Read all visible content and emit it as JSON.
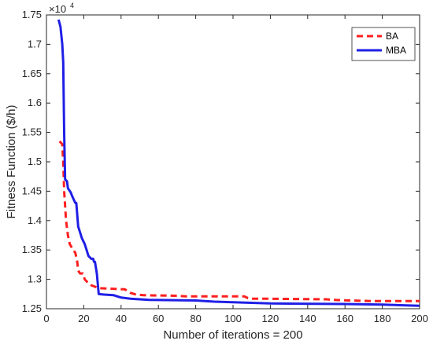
{
  "chart_data": {
    "type": "line",
    "xlabel": "Number of iterations = 200",
    "ylabel": "Fitness Function ($/h)",
    "y_multiplier": {
      "base": "×10",
      "exponent": "4"
    },
    "xlim": [
      0,
      200
    ],
    "ylim": [
      1.25,
      1.75
    ],
    "x_ticks": [
      0,
      20,
      40,
      60,
      80,
      100,
      120,
      140,
      160,
      180,
      200
    ],
    "y_ticks": [
      1.25,
      1.3,
      1.35,
      1.4,
      1.45,
      1.5,
      1.55,
      1.6,
      1.65,
      1.7,
      1.75
    ],
    "grid": false,
    "legend_position": "top-right",
    "series": [
      {
        "name": "BA",
        "color": "#ff1f1f",
        "style": "dashed",
        "points": [
          [
            7,
            1.535
          ],
          [
            8.5,
            1.53
          ],
          [
            9,
            1.5
          ],
          [
            9.5,
            1.45
          ],
          [
            10.5,
            1.4
          ],
          [
            11.5,
            1.375
          ],
          [
            12.5,
            1.36
          ],
          [
            14,
            1.352
          ],
          [
            15.5,
            1.345
          ],
          [
            16.5,
            1.33
          ],
          [
            17,
            1.315
          ],
          [
            18,
            1.31
          ],
          [
            19.5,
            1.31
          ],
          [
            20.5,
            1.3
          ],
          [
            22,
            1.295
          ],
          [
            24,
            1.29
          ],
          [
            28,
            1.285
          ],
          [
            42,
            1.283
          ],
          [
            45,
            1.277
          ],
          [
            48,
            1.274
          ],
          [
            52,
            1.273
          ],
          [
            70,
            1.272
          ],
          [
            75,
            1.271
          ],
          [
            100,
            1.271
          ],
          [
            106,
            1.271
          ],
          [
            108,
            1.268
          ],
          [
            110,
            1.267
          ],
          [
            120,
            1.267
          ],
          [
            150,
            1.266
          ],
          [
            154,
            1.265
          ],
          [
            162,
            1.264
          ],
          [
            175,
            1.263
          ],
          [
            200,
            1.263
          ]
        ]
      },
      {
        "name": "MBA",
        "color": "#1f1fe6",
        "style": "solid",
        "points": [
          [
            6.5,
            1.742
          ],
          [
            7.5,
            1.73
          ],
          [
            8.5,
            1.7
          ],
          [
            9,
            1.67
          ],
          [
            9.5,
            1.55
          ],
          [
            10,
            1.47
          ],
          [
            11,
            1.467
          ],
          [
            11.5,
            1.455
          ],
          [
            13,
            1.448
          ],
          [
            14,
            1.44
          ],
          [
            15.5,
            1.43
          ],
          [
            16,
            1.43
          ],
          [
            17,
            1.39
          ],
          [
            19,
            1.37
          ],
          [
            20.5,
            1.36
          ],
          [
            21.5,
            1.35
          ],
          [
            22.5,
            1.34
          ],
          [
            24,
            1.335
          ],
          [
            25,
            1.335
          ],
          [
            25.5,
            1.33
          ],
          [
            26,
            1.33
          ],
          [
            27,
            1.31
          ],
          [
            28,
            1.275
          ],
          [
            31,
            1.274
          ],
          [
            36,
            1.273
          ],
          [
            38,
            1.271
          ],
          [
            40,
            1.269
          ],
          [
            45,
            1.267
          ],
          [
            55,
            1.265
          ],
          [
            80,
            1.264
          ],
          [
            90,
            1.262
          ],
          [
            120,
            1.259
          ],
          [
            160,
            1.258
          ],
          [
            180,
            1.257
          ],
          [
            200,
            1.255
          ]
        ]
      }
    ]
  }
}
